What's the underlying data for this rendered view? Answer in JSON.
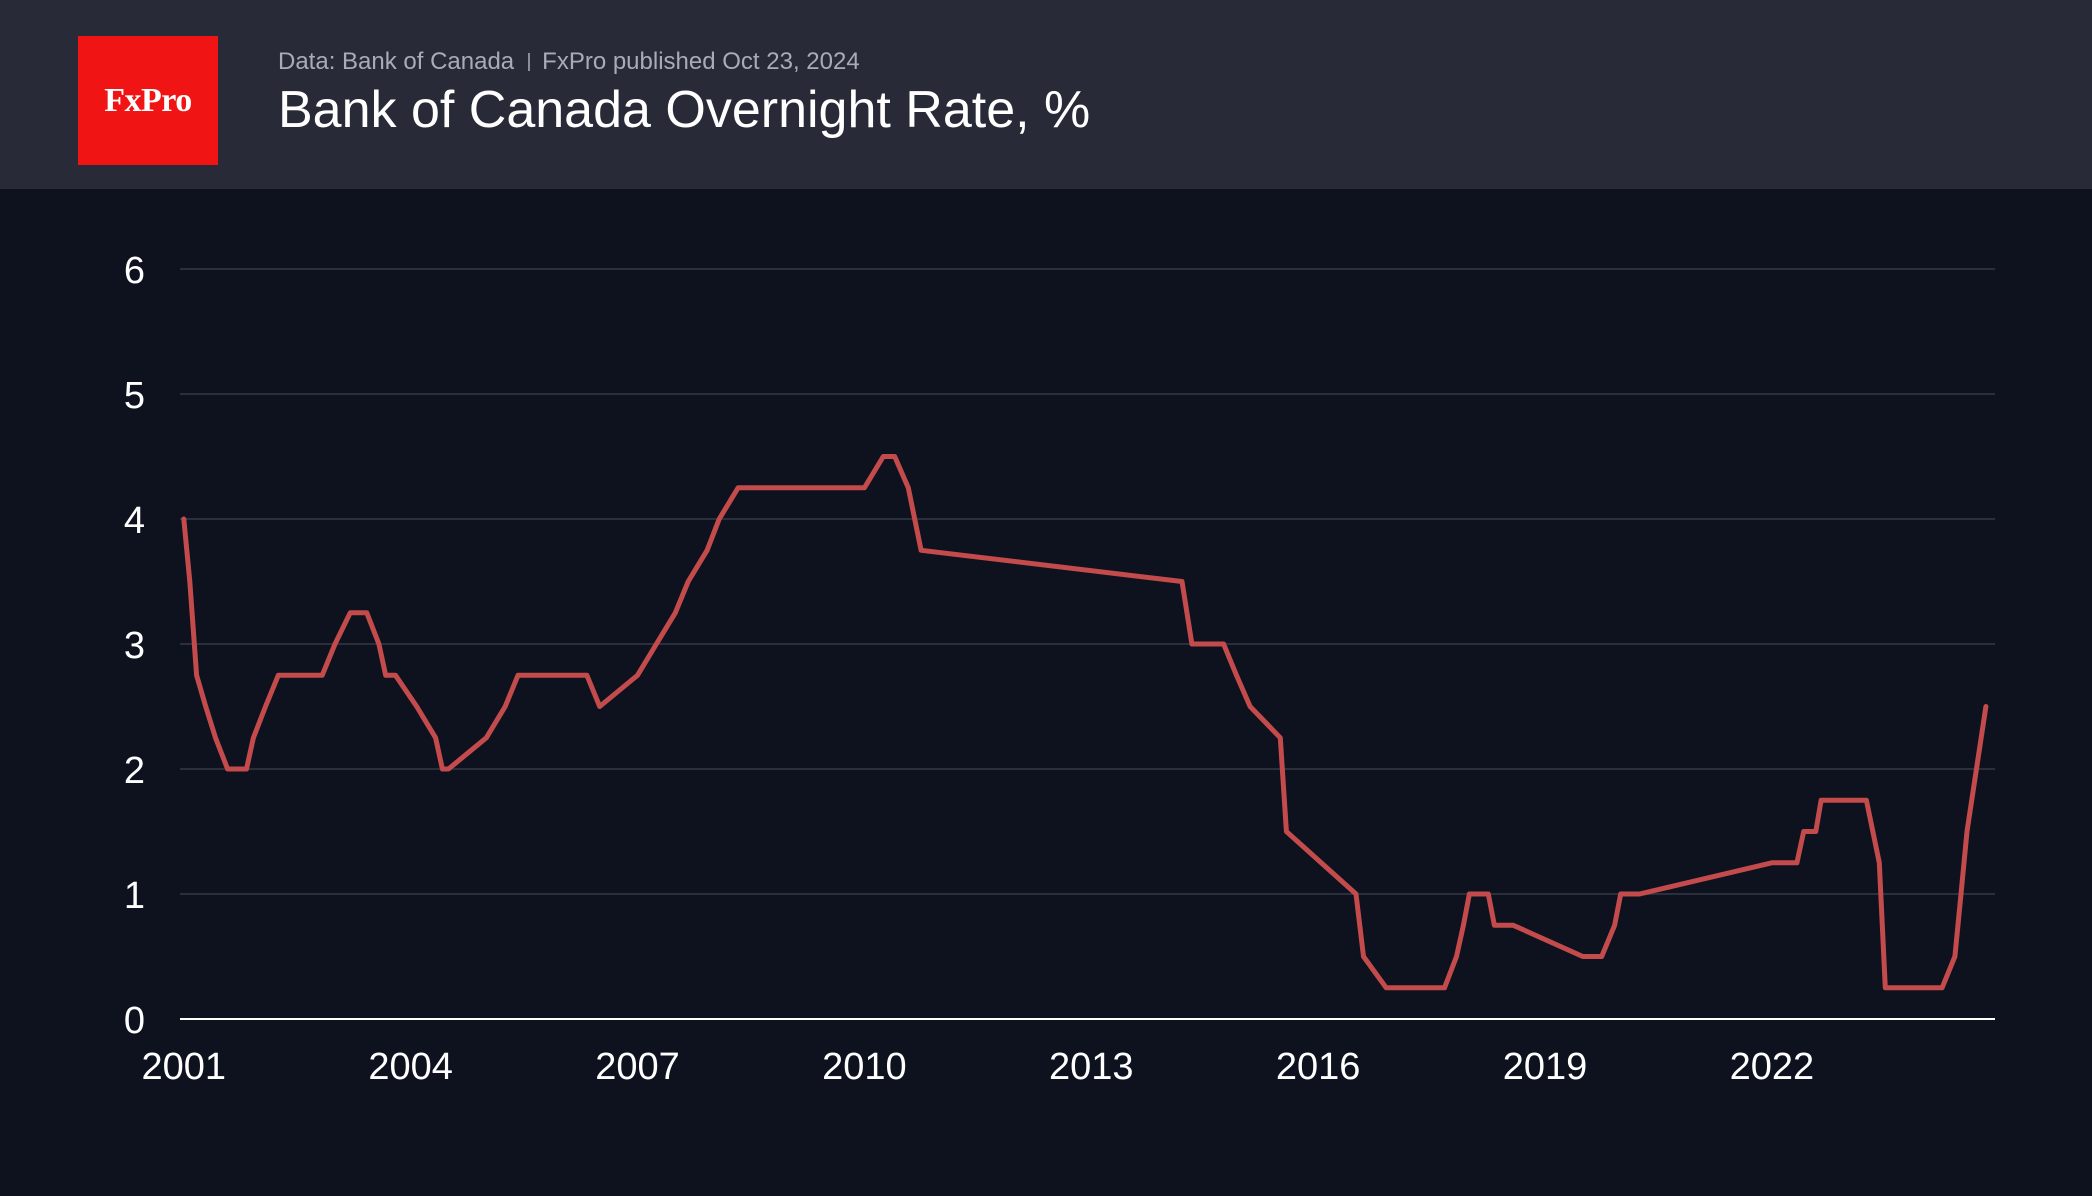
{
  "header": {
    "logo_text": "FxPro",
    "source": "Data: Bank of Canada",
    "published": "FxPro published Oct 23, 2024",
    "title": "Bank of Canada Overnight Rate, %"
  },
  "colors": {
    "background": "#0d121e",
    "header_background": "#282b37",
    "logo_background": "#f01414",
    "line": "#c44b4b",
    "grid": "#2a2f3b",
    "text": "#ffffff"
  },
  "chart_data": {
    "type": "line",
    "title": "Bank of Canada Overnight Rate, %",
    "xlabel": "",
    "ylabel": "",
    "ylim": [
      0,
      6
    ],
    "xlim": [
      2000.95,
      2024.95
    ],
    "x_ticks": [
      2001,
      2004,
      2007,
      2010,
      2013,
      2016,
      2019,
      2022
    ],
    "x_tick_labels": [
      "2001",
      "2004",
      "2007",
      "2010",
      "2013",
      "2016",
      "2019",
      "2022"
    ],
    "y_ticks": [
      0,
      1,
      2,
      3,
      4,
      5,
      6
    ],
    "y_tick_labels": [
      "0",
      "1",
      "2",
      "3",
      "4",
      "5",
      "6"
    ],
    "grid": true,
    "legend": "none",
    "series": [
      {
        "x": [
          2001.0,
          2001.08,
          2001.17,
          2001.29,
          2001.42,
          2001.58,
          2001.67,
          2001.83,
          2001.92,
          2002.08,
          2002.25,
          2002.5,
          2002.67,
          2002.83,
          2003.0,
          2003.2,
          2003.42,
          2003.58,
          2003.67,
          2003.8,
          2004.08,
          2004.33,
          2004.42,
          2004.5,
          2005.0,
          2005.25,
          2005.42,
          2005.67,
          2005.92,
          2006.0,
          2006.2,
          2006.33,
          2006.5,
          2007.0,
          2007.25,
          2007.5,
          2007.67,
          2007.92,
          2008.08,
          2008.33,
          2008.42,
          2008.55,
          2008.75,
          2008.92,
          2009.08,
          2009.33,
          2009.7,
          2009.9,
          2010.0,
          2010.25,
          2010.4,
          2010.58,
          2010.75,
          2014.2,
          2014.33,
          2014.75,
          2014.92,
          2015.1,
          2015.5,
          2015.58,
          2016.5,
          2016.6,
          2016.9,
          2017.1,
          2017.5,
          2017.58,
          2017.67,
          2017.83,
          2017.92,
          2018.0,
          2018.1,
          2018.25,
          2018.33,
          2018.5,
          2018.58,
          2019.5,
          2019.6,
          2019.75,
          2019.92,
          2020.0,
          2020.17,
          2020.25,
          2022.0,
          2022.1,
          2022.25,
          2022.33,
          2022.42,
          2022.5,
          2022.58,
          2022.65,
          2022.75,
          2022.92,
          2023.0,
          2023.25,
          2023.42,
          2023.5,
          2023.58,
          2024.0,
          2024.25,
          2024.42,
          2024.5,
          2024.58,
          2024.83
        ],
        "values": [
          4.0,
          3.5,
          2.75,
          2.5,
          2.25,
          2.0,
          2.0,
          2.0,
          2.25,
          2.5,
          2.75,
          2.75,
          2.75,
          2.75,
          3.0,
          3.25,
          3.25,
          3.0,
          2.75,
          2.75,
          2.5,
          2.25,
          2.0,
          2.0,
          2.25,
          2.5,
          2.75,
          2.75,
          2.75,
          2.75,
          2.75,
          2.75,
          2.5,
          2.75,
          3.0,
          3.25,
          3.5,
          3.75,
          4.0,
          4.25,
          4.25,
          4.25,
          4.25,
          4.25,
          4.25,
          4.25,
          4.25,
          4.25,
          4.25,
          4.5,
          4.5,
          4.25,
          3.75,
          3.5,
          3.0,
          3.0,
          2.75,
          2.5,
          2.25,
          1.5,
          1.0,
          0.5,
          0.25,
          0.25,
          0.25,
          0.25,
          0.25,
          0.5,
          0.75,
          1.0,
          1.0,
          1.0,
          0.75,
          0.75,
          0.75,
          0.5,
          0.5,
          0.5,
          0.75,
          1.0,
          1.0,
          1.0,
          1.25,
          1.25,
          1.25,
          1.25,
          1.5,
          1.5,
          1.5,
          1.75,
          1.75,
          1.75,
          1.75,
          1.75,
          1.25,
          0.25,
          0.25,
          0.25,
          0.25,
          0.5,
          1.0,
          1.5,
          2.5
        ]
      }
    ]
  }
}
